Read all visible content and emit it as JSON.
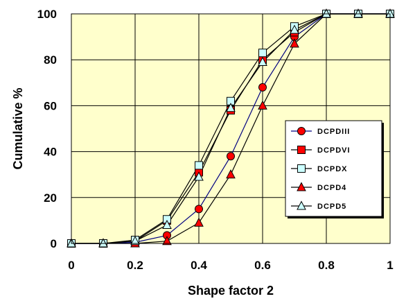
{
  "chart_data": {
    "type": "line",
    "title": "",
    "xlabel": "Shape factor 2",
    "ylabel": "Cumulative %",
    "xlim": [
      0,
      1
    ],
    "ylim": [
      0,
      100
    ],
    "x_ticks": [
      "0",
      "0.2",
      "0.4",
      "0.6",
      "0.8",
      "1"
    ],
    "y_ticks": [
      "0",
      "20",
      "40",
      "60",
      "80",
      "100"
    ],
    "grid": true,
    "legend_position": "right",
    "plot_background": "#ffffcc",
    "x": [
      0,
      0.1,
      0.2,
      0.3,
      0.4,
      0.5,
      0.6,
      0.7,
      0.8,
      0.9,
      1.0
    ],
    "series": [
      {
        "name": "DCPDIII",
        "marker": "circle",
        "line_color": "#000080",
        "marker_fill": "#ff0000",
        "values": [
          0,
          0,
          0.5,
          3.5,
          15,
          38,
          68,
          90,
          100,
          100,
          100
        ]
      },
      {
        "name": "DCPDVI",
        "marker": "square",
        "line_color": "#000000",
        "marker_fill": "#ff0000",
        "values": [
          0,
          0,
          1,
          10,
          31,
          58,
          80,
          92,
          100,
          100,
          100
        ]
      },
      {
        "name": "DCPDX",
        "marker": "square",
        "line_color": "#000000",
        "marker_fill": "#ccffff",
        "values": [
          0,
          0,
          1.5,
          10.5,
          34,
          62,
          83,
          94.5,
          100,
          100,
          100
        ]
      },
      {
        "name": "DCPD4",
        "marker": "triangle",
        "line_color": "#000000",
        "marker_fill": "#ff0000",
        "values": [
          0,
          0,
          0,
          1,
          9,
          30,
          60,
          87,
          100,
          100,
          100
        ]
      },
      {
        "name": "DCPD5",
        "marker": "triangle",
        "line_color": "#000000",
        "marker_fill": "#ccffff",
        "values": [
          0,
          0,
          1,
          8,
          29,
          59,
          79,
          93,
          100,
          100,
          100
        ]
      }
    ]
  }
}
